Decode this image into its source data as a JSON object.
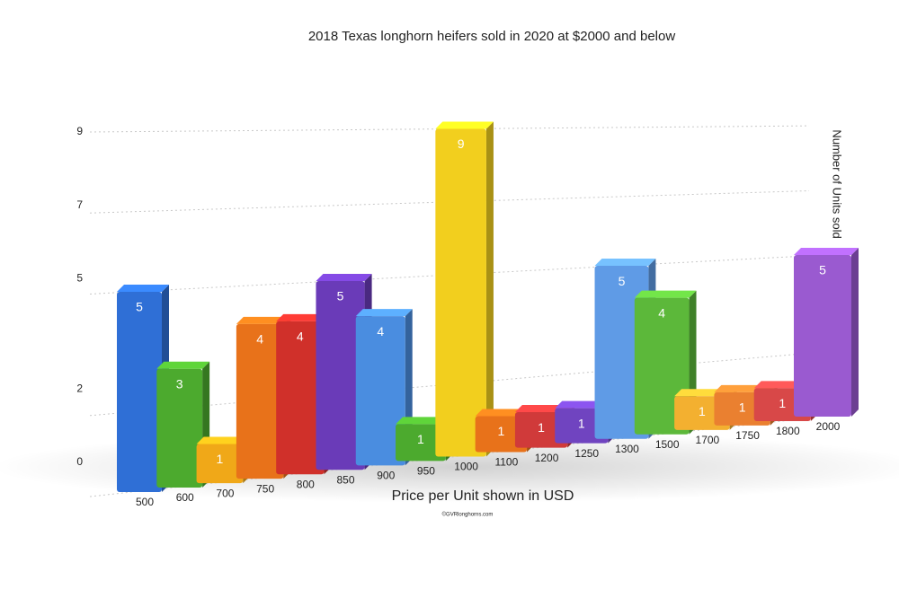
{
  "chart_data": {
    "type": "bar3d",
    "title": "2018 Texas longhorn heifers sold in 2020 at $2000 and below",
    "x_label": "Price per Unit shown in USD",
    "y_label": "Number of Units sold",
    "credit": "©GVRlonghorns.com",
    "categories": [
      "500",
      "600",
      "700",
      "750",
      "800",
      "850",
      "900",
      "950",
      "1000",
      "1100",
      "1200",
      "1250",
      "1300",
      "1500",
      "1700",
      "1750",
      "1800",
      "2000"
    ],
    "values": [
      5,
      3,
      1,
      4,
      4,
      5,
      4,
      1,
      9,
      1,
      1,
      1,
      5,
      4,
      1,
      1,
      1,
      5
    ],
    "colors": [
      "#2f6fd6",
      "#4caa2e",
      "#f0a818",
      "#e8721a",
      "#d0302a",
      "#6a3bb8",
      "#4a8de0",
      "#4caa2e",
      "#f2cf1e",
      "#e8721a",
      "#d03a3a",
      "#7044c0",
      "#5f9be6",
      "#5cb83a",
      "#f3b030",
      "#ea8030",
      "#d84848",
      "#9a5ad0"
    ],
    "ylim": [
      0,
      9
    ],
    "yticks": [
      0,
      2,
      5,
      7,
      9
    ],
    "grid": true
  }
}
